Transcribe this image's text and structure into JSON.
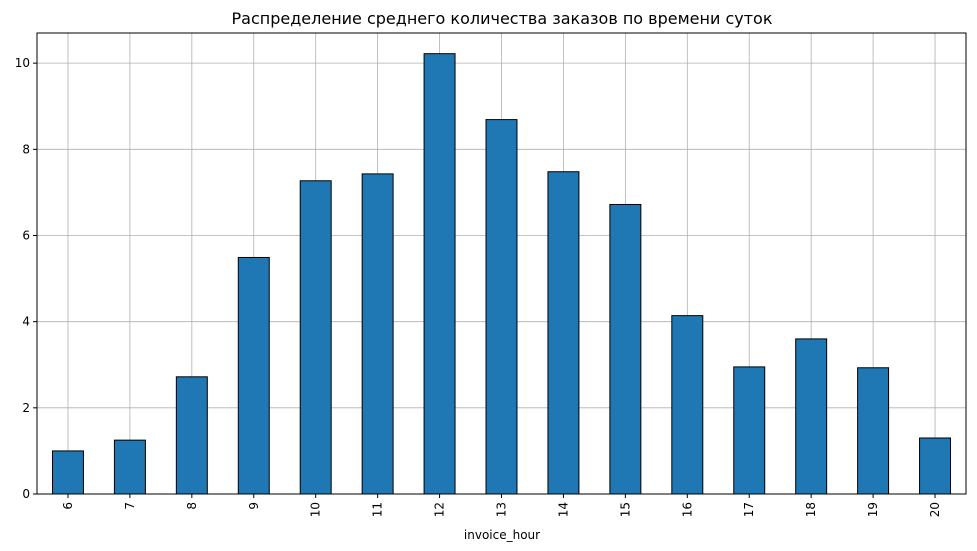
{
  "chart_data": {
    "type": "bar",
    "title": "Распределение среднего количества заказов по времени суток",
    "xlabel": "invoice_hour",
    "ylabel": "",
    "categories": [
      "6",
      "7",
      "8",
      "9",
      "10",
      "11",
      "12",
      "13",
      "14",
      "15",
      "16",
      "17",
      "18",
      "19",
      "20"
    ],
    "values": [
      1.0,
      1.25,
      2.72,
      5.49,
      7.27,
      7.43,
      10.22,
      8.69,
      7.48,
      6.72,
      4.14,
      2.95,
      3.6,
      2.93,
      1.3
    ],
    "ylim": [
      0,
      10.7
    ],
    "yticks": [
      0,
      2,
      4,
      6,
      8,
      10
    ],
    "ytick_labels": [
      "0",
      "2",
      "4",
      "6",
      "8",
      "10"
    ],
    "grid": true,
    "bar_color": "#1f77b4",
    "edge_color": "#000000"
  }
}
